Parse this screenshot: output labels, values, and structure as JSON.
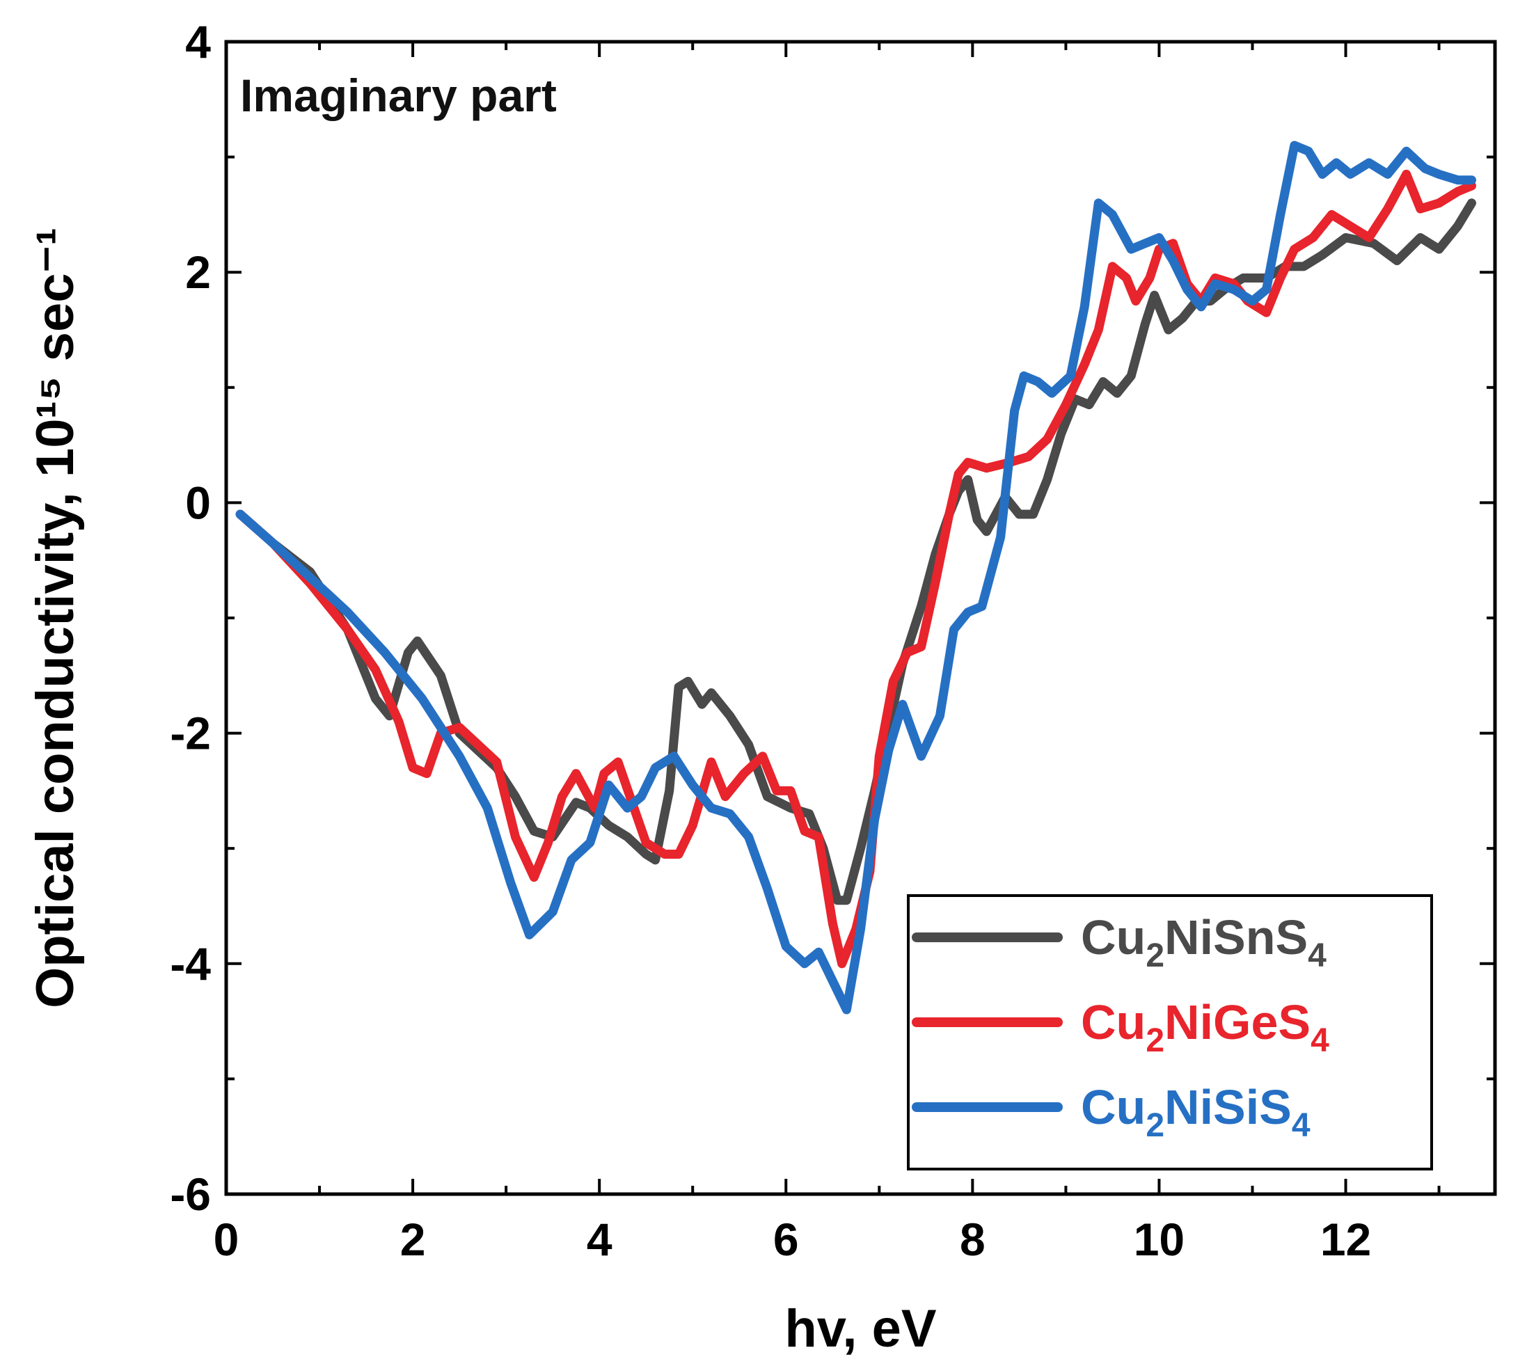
{
  "chart_data": {
    "type": "line",
    "title": "",
    "annotation": "Imaginary part",
    "xlabel": "hv, eV",
    "ylabel": "Optical conductivity, 10¹⁵ sec⁻¹",
    "xlim": [
      0,
      13.6
    ],
    "ylim": [
      -6,
      4
    ],
    "xticks": [
      0,
      2,
      4,
      6,
      8,
      10,
      12
    ],
    "yticks": [
      -6,
      -4,
      -2,
      0,
      2,
      4
    ],
    "xtick_labels": [
      "0",
      "2",
      "4",
      "6",
      "8",
      "10",
      "12"
    ],
    "ytick_labels": [
      "-6",
      "-4",
      "-2",
      "0",
      "2",
      "4"
    ],
    "grid": false,
    "legend_position": "bottom-right",
    "series": [
      {
        "name": "Cu₂NiSnS₄",
        "label_base": [
          "Cu",
          "NiSnS"
        ],
        "label_subs": [
          "2",
          "4"
        ],
        "color": "#4a4a4a",
        "points": [
          [
            0.15,
            -0.1
          ],
          [
            0.5,
            -0.35
          ],
          [
            0.9,
            -0.6
          ],
          [
            1.3,
            -1.1
          ],
          [
            1.6,
            -1.7
          ],
          [
            1.75,
            -1.85
          ],
          [
            1.95,
            -1.3
          ],
          [
            2.05,
            -1.2
          ],
          [
            2.3,
            -1.5
          ],
          [
            2.5,
            -2.0
          ],
          [
            2.9,
            -2.3
          ],
          [
            3.1,
            -2.55
          ],
          [
            3.3,
            -2.85
          ],
          [
            3.5,
            -2.9
          ],
          [
            3.75,
            -2.6
          ],
          [
            3.9,
            -2.65
          ],
          [
            4.1,
            -2.8
          ],
          [
            4.3,
            -2.9
          ],
          [
            4.5,
            -3.05
          ],
          [
            4.6,
            -3.1
          ],
          [
            4.75,
            -2.5
          ],
          [
            4.85,
            -1.6
          ],
          [
            4.95,
            -1.55
          ],
          [
            5.1,
            -1.75
          ],
          [
            5.2,
            -1.65
          ],
          [
            5.4,
            -1.85
          ],
          [
            5.6,
            -2.1
          ],
          [
            5.8,
            -2.55
          ],
          [
            6.05,
            -2.65
          ],
          [
            6.25,
            -2.7
          ],
          [
            6.4,
            -3.0
          ],
          [
            6.55,
            -3.45
          ],
          [
            6.65,
            -3.45
          ],
          [
            6.8,
            -3.0
          ],
          [
            6.95,
            -2.5
          ],
          [
            7.1,
            -1.95
          ],
          [
            7.25,
            -1.4
          ],
          [
            7.45,
            -0.9
          ],
          [
            7.6,
            -0.45
          ],
          [
            7.75,
            -0.1
          ],
          [
            7.85,
            0.1
          ],
          [
            7.95,
            0.2
          ],
          [
            8.05,
            -0.15
          ],
          [
            8.15,
            -0.25
          ],
          [
            8.35,
            0.05
          ],
          [
            8.5,
            -0.1
          ],
          [
            8.65,
            -0.1
          ],
          [
            8.8,
            0.2
          ],
          [
            8.95,
            0.6
          ],
          [
            9.1,
            0.9
          ],
          [
            9.25,
            0.85
          ],
          [
            9.4,
            1.05
          ],
          [
            9.55,
            0.95
          ],
          [
            9.7,
            1.1
          ],
          [
            9.85,
            1.55
          ],
          [
            9.95,
            1.8
          ],
          [
            10.1,
            1.5
          ],
          [
            10.25,
            1.6
          ],
          [
            10.4,
            1.75
          ],
          [
            10.55,
            1.75
          ],
          [
            10.7,
            1.85
          ],
          [
            10.9,
            1.95
          ],
          [
            11.15,
            1.95
          ],
          [
            11.35,
            2.05
          ],
          [
            11.55,
            2.05
          ],
          [
            11.75,
            2.15
          ],
          [
            12.0,
            2.3
          ],
          [
            12.3,
            2.25
          ],
          [
            12.55,
            2.1
          ],
          [
            12.8,
            2.3
          ],
          [
            13.0,
            2.2
          ],
          [
            13.2,
            2.4
          ],
          [
            13.35,
            2.6
          ]
        ]
      },
      {
        "name": "Cu₂NiGeS₄",
        "label_base": [
          "Cu",
          "NiGeS"
        ],
        "label_subs": [
          "2",
          "4"
        ],
        "color": "#e8242c",
        "points": [
          [
            0.15,
            -0.1
          ],
          [
            0.5,
            -0.35
          ],
          [
            0.9,
            -0.7
          ],
          [
            1.3,
            -1.1
          ],
          [
            1.6,
            -1.45
          ],
          [
            1.85,
            -1.9
          ],
          [
            2.0,
            -2.3
          ],
          [
            2.15,
            -2.35
          ],
          [
            2.3,
            -2.0
          ],
          [
            2.5,
            -1.95
          ],
          [
            2.9,
            -2.25
          ],
          [
            3.1,
            -2.9
          ],
          [
            3.3,
            -3.25
          ],
          [
            3.45,
            -2.95
          ],
          [
            3.6,
            -2.55
          ],
          [
            3.75,
            -2.35
          ],
          [
            3.95,
            -2.65
          ],
          [
            4.05,
            -2.35
          ],
          [
            4.2,
            -2.25
          ],
          [
            4.35,
            -2.6
          ],
          [
            4.5,
            -2.95
          ],
          [
            4.7,
            -3.05
          ],
          [
            4.85,
            -3.05
          ],
          [
            5.0,
            -2.8
          ],
          [
            5.2,
            -2.25
          ],
          [
            5.35,
            -2.55
          ],
          [
            5.55,
            -2.35
          ],
          [
            5.75,
            -2.2
          ],
          [
            5.9,
            -2.5
          ],
          [
            6.05,
            -2.5
          ],
          [
            6.2,
            -2.85
          ],
          [
            6.35,
            -2.9
          ],
          [
            6.5,
            -3.65
          ],
          [
            6.6,
            -4.0
          ],
          [
            6.75,
            -3.7
          ],
          [
            6.9,
            -3.2
          ],
          [
            7.0,
            -2.2
          ],
          [
            7.15,
            -1.55
          ],
          [
            7.3,
            -1.3
          ],
          [
            7.45,
            -1.25
          ],
          [
            7.6,
            -0.7
          ],
          [
            7.75,
            -0.1
          ],
          [
            7.85,
            0.25
          ],
          [
            7.95,
            0.35
          ],
          [
            8.15,
            0.3
          ],
          [
            8.4,
            0.35
          ],
          [
            8.6,
            0.4
          ],
          [
            8.8,
            0.55
          ],
          [
            9.0,
            0.85
          ],
          [
            9.2,
            1.2
          ],
          [
            9.35,
            1.5
          ],
          [
            9.5,
            2.05
          ],
          [
            9.65,
            1.95
          ],
          [
            9.75,
            1.75
          ],
          [
            9.9,
            1.95
          ],
          [
            10.0,
            2.2
          ],
          [
            10.15,
            2.25
          ],
          [
            10.3,
            1.9
          ],
          [
            10.45,
            1.75
          ],
          [
            10.6,
            1.95
          ],
          [
            10.8,
            1.9
          ],
          [
            10.95,
            1.75
          ],
          [
            11.15,
            1.65
          ],
          [
            11.3,
            1.95
          ],
          [
            11.45,
            2.2
          ],
          [
            11.65,
            2.3
          ],
          [
            11.85,
            2.5
          ],
          [
            12.05,
            2.4
          ],
          [
            12.25,
            2.3
          ],
          [
            12.45,
            2.55
          ],
          [
            12.65,
            2.85
          ],
          [
            12.8,
            2.55
          ],
          [
            13.0,
            2.6
          ],
          [
            13.2,
            2.7
          ],
          [
            13.35,
            2.75
          ]
        ]
      },
      {
        "name": "Cu₂NiSiS₄",
        "label_base": [
          "Cu",
          "NiSiS"
        ],
        "label_subs": [
          "2",
          "4"
        ],
        "color": "#2670c4",
        "points": [
          [
            0.15,
            -0.1
          ],
          [
            0.5,
            -0.35
          ],
          [
            0.9,
            -0.65
          ],
          [
            1.3,
            -0.95
          ],
          [
            1.7,
            -1.3
          ],
          [
            2.1,
            -1.7
          ],
          [
            2.5,
            -2.2
          ],
          [
            2.8,
            -2.65
          ],
          [
            3.05,
            -3.3
          ],
          [
            3.25,
            -3.75
          ],
          [
            3.5,
            -3.55
          ],
          [
            3.7,
            -3.1
          ],
          [
            3.9,
            -2.95
          ],
          [
            4.1,
            -2.45
          ],
          [
            4.3,
            -2.65
          ],
          [
            4.45,
            -2.55
          ],
          [
            4.6,
            -2.3
          ],
          [
            4.8,
            -2.2
          ],
          [
            5.0,
            -2.45
          ],
          [
            5.2,
            -2.65
          ],
          [
            5.4,
            -2.7
          ],
          [
            5.6,
            -2.9
          ],
          [
            5.8,
            -3.35
          ],
          [
            6.0,
            -3.85
          ],
          [
            6.2,
            -4.0
          ],
          [
            6.35,
            -3.9
          ],
          [
            6.5,
            -4.15
          ],
          [
            6.65,
            -4.4
          ],
          [
            6.8,
            -3.7
          ],
          [
            6.95,
            -2.75
          ],
          [
            7.1,
            -2.15
          ],
          [
            7.25,
            -1.75
          ],
          [
            7.45,
            -2.2
          ],
          [
            7.65,
            -1.85
          ],
          [
            7.8,
            -1.1
          ],
          [
            7.95,
            -0.95
          ],
          [
            8.1,
            -0.9
          ],
          [
            8.3,
            -0.3
          ],
          [
            8.45,
            0.8
          ],
          [
            8.55,
            1.1
          ],
          [
            8.7,
            1.05
          ],
          [
            8.85,
            0.95
          ],
          [
            9.05,
            1.1
          ],
          [
            9.2,
            1.7
          ],
          [
            9.35,
            2.6
          ],
          [
            9.5,
            2.5
          ],
          [
            9.7,
            2.2
          ],
          [
            9.85,
            2.25
          ],
          [
            10.0,
            2.3
          ],
          [
            10.15,
            2.1
          ],
          [
            10.3,
            1.85
          ],
          [
            10.45,
            1.7
          ],
          [
            10.6,
            1.9
          ],
          [
            10.8,
            1.85
          ],
          [
            11.0,
            1.75
          ],
          [
            11.15,
            1.85
          ],
          [
            11.3,
            2.5
          ],
          [
            11.45,
            3.1
          ],
          [
            11.6,
            3.05
          ],
          [
            11.75,
            2.85
          ],
          [
            11.9,
            2.95
          ],
          [
            12.05,
            2.85
          ],
          [
            12.25,
            2.95
          ],
          [
            12.45,
            2.85
          ],
          [
            12.65,
            3.05
          ],
          [
            12.85,
            2.9
          ],
          [
            13.0,
            2.85
          ],
          [
            13.2,
            2.8
          ],
          [
            13.35,
            2.8
          ]
        ]
      }
    ]
  }
}
